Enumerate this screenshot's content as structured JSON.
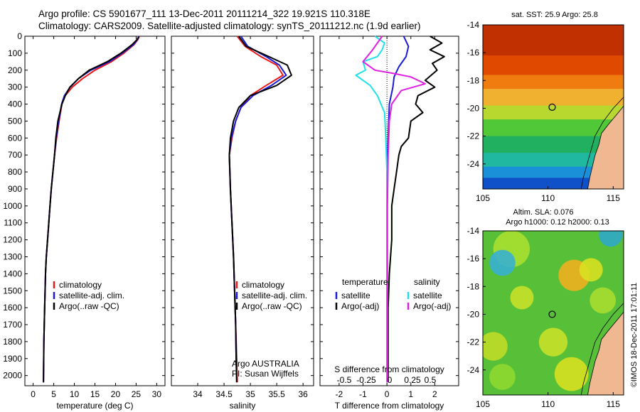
{
  "header": {
    "title_line1": "Argo profile: CS 5901677_111 13-Dec-2011 20111214_322 19.921S 110.318E",
    "title_line2": "Climatology: CARS2009. Satellite-adjusted climatology: synTS_20111212.nc (1.9d earlier)"
  },
  "stamp": "©IMOS 18-Dec-2011 17:01:11",
  "colors": {
    "climatology": "#e8191a",
    "satellite": "#1a1ad8",
    "argo": "#000000",
    "sal_satellite": "#22e0e8",
    "sal_argo": "#e020e0"
  },
  "chart_data": [
    {
      "type": "line",
      "id": "temperature",
      "xlabel": "temperature (deg C)",
      "ylabel": "",
      "xlim": [
        -2,
        32
      ],
      "ylim": [
        2060,
        0
      ],
      "xticks": [
        0,
        5,
        10,
        15,
        20,
        25,
        30
      ],
      "xtick_labels": [
        "0",
        "5",
        "10",
        "15",
        "20",
        "25",
        "30"
      ],
      "yticks": [
        0,
        100,
        200,
        300,
        400,
        500,
        600,
        700,
        800,
        900,
        1000,
        1100,
        1200,
        1300,
        1400,
        1500,
        1600,
        1700,
        1800,
        1900,
        2000
      ],
      "ytick_labels": [
        "0",
        "100",
        "200",
        "300",
        "400",
        "500",
        "600",
        "700",
        "800",
        "900",
        "1000",
        "1100",
        "1200",
        "1300",
        "1400",
        "1500",
        "1600",
        "1700",
        "1800",
        "1900",
        "2000"
      ],
      "legend": [
        "climatology",
        "satellite-adj. clim.",
        "Argo(..raw -QC)"
      ],
      "series": [
        {
          "name": "climatology",
          "color_key": "climatology",
          "x": [
            25.8,
            25.4,
            24.5,
            22.0,
            19.0,
            15.0,
            12.0,
            9.5,
            7.8,
            7.0,
            6.3,
            5.7,
            5.2,
            4.8,
            4.4,
            4.1,
            3.8,
            3.5,
            3.2,
            3.0,
            2.8,
            2.6,
            2.5
          ],
          "y": [
            0,
            20,
            50,
            100,
            150,
            200,
            250,
            300,
            350,
            400,
            500,
            600,
            700,
            800,
            900,
            1000,
            1100,
            1200,
            1300,
            1400,
            1600,
            1800,
            2040
          ]
        },
        {
          "name": "satellite-adj. clim.",
          "color_key": "satellite",
          "x": [
            25.7,
            25.3,
            24.3,
            21.6,
            18.5,
            14.0,
            11.0,
            9.0,
            7.6,
            6.9,
            6.2,
            5.6,
            5.2,
            4.8,
            4.4,
            4.1,
            3.8,
            3.5,
            3.2,
            3.0,
            2.8,
            2.6,
            2.5
          ],
          "y": [
            0,
            20,
            50,
            100,
            150,
            200,
            250,
            300,
            350,
            400,
            500,
            600,
            700,
            800,
            900,
            1000,
            1100,
            1200,
            1300,
            1400,
            1600,
            1800,
            2040
          ]
        },
        {
          "name": "Argo(..raw -QC)",
          "color_key": "argo",
          "x": [
            25.6,
            25.2,
            24.0,
            21.3,
            18.0,
            13.6,
            11.0,
            8.9,
            7.8,
            7.0,
            6.0,
            5.5,
            5.2,
            4.8,
            4.4,
            4.1,
            3.8,
            3.5,
            3.2,
            3.0,
            2.8,
            2.6,
            2.5
          ],
          "y": [
            5,
            20,
            50,
            100,
            150,
            200,
            250,
            300,
            350,
            400,
            500,
            600,
            700,
            800,
            900,
            1000,
            1100,
            1200,
            1300,
            1400,
            1600,
            1800,
            2040
          ]
        }
      ]
    },
    {
      "type": "line",
      "id": "salinity",
      "xlabel": "salinity",
      "xlim": [
        33.5,
        36.2
      ],
      "ylim": [
        2060,
        0
      ],
      "xticks": [
        34,
        34.5,
        35,
        35.5,
        36
      ],
      "xtick_labels": [
        "34",
        "34.5",
        "35",
        "35.5",
        "36"
      ],
      "legend": [
        "climatology",
        "satellite-adj. clim.",
        "Argo(..raw -QC)"
      ],
      "annotation": [
        "Argo AUSTRALIA",
        "PI: Susan Wijffels"
      ],
      "series": [
        {
          "name": "climatology",
          "color_key": "climatology",
          "x": [
            34.75,
            34.9,
            35.2,
            35.5,
            35.62,
            35.3,
            35.0,
            34.82,
            34.72,
            34.65,
            34.6,
            34.62,
            34.65,
            34.68,
            34.7,
            34.72,
            34.74,
            34.75
          ],
          "y": [
            0,
            60,
            120,
            170,
            230,
            290,
            350,
            420,
            500,
            600,
            700,
            900,
            1100,
            1300,
            1500,
            1700,
            1900,
            2040
          ]
        },
        {
          "name": "satellite-adj. clim.",
          "color_key": "satellite",
          "x": [
            34.82,
            34.95,
            35.3,
            35.55,
            35.68,
            35.4,
            35.05,
            34.82,
            34.72,
            34.64,
            34.6,
            34.62,
            34.65,
            34.68,
            34.7,
            34.72,
            34.73,
            34.74
          ],
          "y": [
            0,
            60,
            120,
            170,
            230,
            290,
            350,
            420,
            500,
            600,
            700,
            900,
            1100,
            1300,
            1500,
            1700,
            1900,
            2040
          ]
        },
        {
          "name": "Argo(..raw -QC)",
          "color_key": "argo",
          "x": [
            34.78,
            34.92,
            35.35,
            35.7,
            35.78,
            35.5,
            35.0,
            34.78,
            34.68,
            34.62,
            34.6,
            34.62,
            34.65,
            34.68,
            34.7,
            34.72,
            34.73,
            34.74
          ],
          "y": [
            0,
            60,
            120,
            170,
            230,
            290,
            350,
            420,
            500,
            600,
            700,
            900,
            1100,
            1300,
            1500,
            1700,
            1900,
            2040
          ]
        }
      ]
    },
    {
      "type": "line",
      "id": "difference",
      "xlabel_bottom": "T difference from climatology",
      "xlabel_top": "S difference from climatology",
      "xlim": [
        -2.8,
        3.0
      ],
      "ylim": [
        2060,
        0
      ],
      "xticks_T": [
        -2,
        -1,
        0,
        1,
        2
      ],
      "xtick_labels_T": [
        "-2",
        "-1",
        "0",
        "1",
        "2"
      ],
      "xtick_labels_S": [
        "-0.5",
        "-0.25",
        "0",
        "0.25",
        "0.5"
      ],
      "legend_left_title": "temperature",
      "legend_left": [
        "satellite",
        "Argo(-adj)"
      ],
      "legend_right_title": "salinity",
      "legend_right": [
        "satellite",
        "Argo(-adj)"
      ],
      "series": [
        {
          "name": "T satellite",
          "color_key": "satellite",
          "x": [
            0.7,
            0.9,
            0.8,
            0.5,
            0.3,
            0.25,
            0.1,
            0.05,
            0,
            0,
            0
          ],
          "y": [
            0,
            60,
            120,
            180,
            240,
            300,
            400,
            600,
            800,
            1200,
            2040
          ]
        },
        {
          "name": "T Argo(-adj)",
          "color_key": "argo",
          "x": [
            1.8,
            2.3,
            1.8,
            2.4,
            1.9,
            2.1,
            1.6,
            2.0,
            1.3,
            1.2,
            1.5,
            1.0,
            0.9,
            0.6,
            0.5,
            0.4,
            0.3,
            0.2,
            0.2,
            0.1,
            0.05,
            0.05,
            0.05
          ],
          "y": [
            0,
            40,
            80,
            120,
            160,
            200,
            260,
            300,
            350,
            400,
            450,
            500,
            600,
            650,
            700,
            800,
            900,
            1000,
            1200,
            1400,
            1600,
            1800,
            2040
          ]
        },
        {
          "name": "S satellite",
          "color_key": "sal_satellite",
          "x": [
            -0.5,
            -0.1,
            -0.2,
            -0.4,
            -1.0,
            -0.9,
            -1.3,
            -0.7,
            -0.4,
            -0.1,
            -0.05,
            0,
            0,
            0
          ],
          "y": [
            0,
            40,
            80,
            120,
            150,
            200,
            230,
            290,
            350,
            450,
            600,
            800,
            1200,
            2040
          ]
        },
        {
          "name": "S Argo(-adj)",
          "color_key": "sal_argo",
          "x": [
            -0.2,
            -0.6,
            -1.0,
            -0.5,
            0.3,
            1.0,
            1.6,
            0.6,
            0.2,
            0.1,
            0.05,
            0.02,
            0.02
          ],
          "y": [
            0,
            80,
            150,
            200,
            220,
            240,
            280,
            320,
            400,
            500,
            700,
            1000,
            2040
          ]
        }
      ]
    },
    {
      "type": "heatmap",
      "id": "sst_map",
      "title": "sat. SST: 25.9 Argo: 25.8",
      "xlim": [
        105,
        115.8
      ],
      "ylim": [
        -25.8,
        -14
      ],
      "xticks": [
        105,
        110,
        115
      ],
      "xtick_labels": [
        "105",
        "110",
        "115"
      ],
      "yticks": [
        -14,
        -16,
        -18,
        -20,
        -22,
        -24
      ],
      "ytick_labels": [
        "-14",
        "-16",
        "-18",
        "-20",
        "-22",
        "-24"
      ],
      "marker": {
        "lon": 110.318,
        "lat": -19.921
      },
      "color_bands": [
        {
          "lat_top": -14,
          "color": "#c03000"
        },
        {
          "lat_top": -16.2,
          "color": "#e04a00"
        },
        {
          "lat_top": -17.6,
          "color": "#f07c10"
        },
        {
          "lat_top": -18.6,
          "color": "#f0b030"
        },
        {
          "lat_top": -19.8,
          "color": "#b8d830"
        },
        {
          "lat_top": -20.8,
          "color": "#50c838"
        },
        {
          "lat_top": -22.0,
          "color": "#20b060"
        },
        {
          "lat_top": -23.2,
          "color": "#20b8a0"
        },
        {
          "lat_top": -24.2,
          "color": "#1a90d8"
        },
        {
          "lat_top": -25.0,
          "color": "#1050c8"
        }
      ]
    },
    {
      "type": "heatmap",
      "id": "sla_map",
      "title_line1": "Altim. SLA: 0.076",
      "title_line2": "Argo h1000: 0.12 h2000: 0.13",
      "xlim": [
        105,
        115.8
      ],
      "ylim": [
        -25.8,
        -14
      ],
      "xticks": [
        105,
        110,
        115
      ],
      "xtick_labels": [
        "105",
        "110",
        "115"
      ],
      "yticks": [
        -14,
        -16,
        -18,
        -20,
        -22,
        -24
      ],
      "ytick_labels": [
        "-14",
        "-16",
        "-18",
        "-20",
        "-22",
        "-24"
      ],
      "marker": {
        "lon": 110.318,
        "lat": -20.0
      },
      "background": "#58c038",
      "blobs": [
        {
          "lon": 107.2,
          "lat": -15.3,
          "r": 1.4,
          "color": "#a8e030"
        },
        {
          "lon": 106.5,
          "lat": -16.3,
          "r": 1.0,
          "color": "#38b0d0"
        },
        {
          "lon": 112.0,
          "lat": -17.2,
          "r": 1.2,
          "color": "#f0b020"
        },
        {
          "lon": 113.3,
          "lat": -16.8,
          "r": 0.9,
          "color": "#d8e020"
        },
        {
          "lon": 108.0,
          "lat": -18.8,
          "r": 0.9,
          "color": "#c8e028"
        },
        {
          "lon": 110.4,
          "lat": -22.0,
          "r": 1.1,
          "color": "#c8e028"
        },
        {
          "lon": 111.8,
          "lat": -24.3,
          "r": 1.3,
          "color": "#d8e020"
        },
        {
          "lon": 105.8,
          "lat": -22.3,
          "r": 1.1,
          "color": "#c0dc28"
        },
        {
          "lon": 106.5,
          "lat": -24.5,
          "r": 1.0,
          "color": "#90d830"
        },
        {
          "lon": 114.8,
          "lat": -14.3,
          "r": 0.9,
          "color": "#30a8c8"
        },
        {
          "lon": 114.2,
          "lat": -19.0,
          "r": 1.0,
          "color": "#a8dc30"
        }
      ]
    }
  ]
}
